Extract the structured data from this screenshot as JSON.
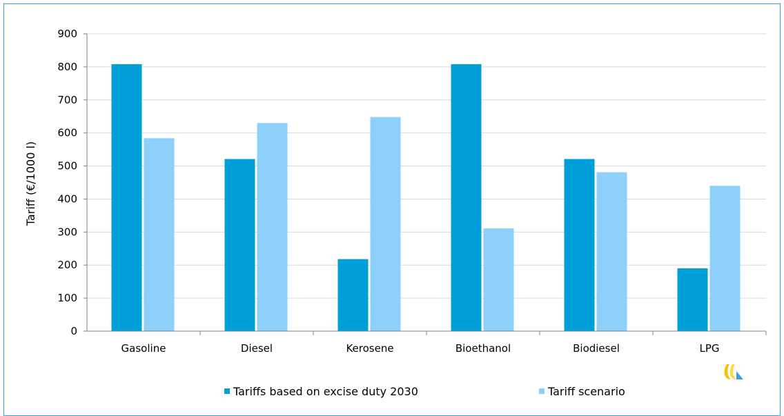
{
  "chart_data": {
    "type": "bar",
    "title": "",
    "xlabel": "",
    "ylabel": "Tariff (€/1000 l)",
    "categories": [
      "Gasoline",
      "Diesel",
      "Kerosene",
      "Bioethanol",
      "Biodiesel",
      "LPG"
    ],
    "series": [
      {
        "name": "Tariffs based on excise duty 2030",
        "color": "#009fda",
        "values": [
          808,
          521,
          218,
          808,
          521,
          190
        ]
      },
      {
        "name": "Tariff scenario",
        "color": "#8dd1fa",
        "values": [
          584,
          630,
          648,
          311,
          481,
          440
        ]
      }
    ],
    "ylim": [
      0,
      900
    ],
    "yticks": [
      0,
      100,
      200,
      300,
      400,
      500,
      600,
      700,
      800,
      900
    ],
    "grid": true,
    "legend_position": "bottom",
    "colors": {
      "frame": "#3a9fd6",
      "grid": "#d9d9d9"
    },
    "logo": "wave-logo-icon"
  }
}
